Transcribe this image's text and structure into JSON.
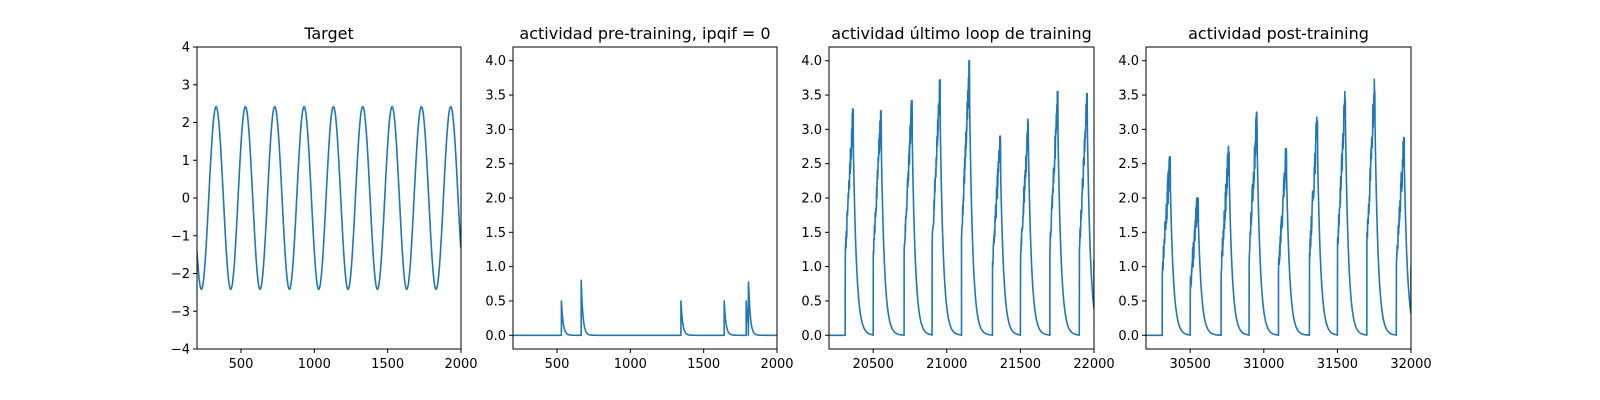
{
  "colors": {
    "line": "#1f77b4",
    "axes": "#000000",
    "background": "#ffffff"
  },
  "chart_data": [
    {
      "type": "line",
      "title": "Target",
      "xlabel": "",
      "ylabel": "",
      "xlim": [
        200,
        2000
      ],
      "ylim": [
        -4,
        4
      ],
      "xticks": [
        500,
        1000,
        1500,
        2000
      ],
      "xticklabels": [
        "500",
        "1000",
        "1500",
        "2000"
      ],
      "yticks": [
        -4,
        -3,
        -2,
        -1,
        0,
        1,
        2,
        3,
        4
      ],
      "yticklabels": [
        "−4",
        "−3",
        "−2",
        "−1",
        "0",
        "1",
        "2",
        "3",
        "4"
      ],
      "grid": false,
      "series": [
        {
          "kind": "sinusoid",
          "x_range": [
            200,
            2000
          ],
          "amplitude": 2.42,
          "period": 200,
          "peak_x": 330,
          "end_value": -0.9
        }
      ]
    },
    {
      "type": "line",
      "title": "actividad pre-training, ipqif = 0",
      "xlabel": "",
      "ylabel": "",
      "xlim": [
        200,
        2000
      ],
      "ylim": [
        -0.2,
        4.2
      ],
      "xticks": [
        500,
        1000,
        1500,
        2000
      ],
      "xticklabels": [
        "500",
        "1000",
        "1500",
        "2000"
      ],
      "yticks": [
        0.0,
        0.5,
        1.0,
        1.5,
        2.0,
        2.5,
        3.0,
        3.5,
        4.0
      ],
      "yticklabels": [
        "0.0",
        "0.5",
        "1.0",
        "1.5",
        "2.0",
        "2.5",
        "3.0",
        "3.5",
        "4.0"
      ],
      "grid": false,
      "series": [
        {
          "kind": "spikes",
          "x_range": [
            200,
            2000
          ],
          "baseline": 0.0,
          "decay": 12,
          "events": [
            {
              "x": 530,
              "peak": 0.5
            },
            {
              "x": 665,
              "peak": 0.8
            },
            {
              "x": 1345,
              "peak": 0.5
            },
            {
              "x": 1640,
              "peak": 0.5
            },
            {
              "x": 1790,
              "peak": 0.5
            },
            {
              "x": 1805,
              "peak": 0.7
            }
          ]
        }
      ]
    },
    {
      "type": "line",
      "title": "actividad último loop de training",
      "xlabel": "",
      "ylabel": "",
      "xlim": [
        20200,
        22000
      ],
      "ylim": [
        -0.2,
        4.2
      ],
      "xticks": [
        20500,
        21000,
        21500,
        22000
      ],
      "xticklabels": [
        "20500",
        "21000",
        "21500",
        "22000"
      ],
      "yticks": [
        0.0,
        0.5,
        1.0,
        1.5,
        2.0,
        2.5,
        3.0,
        3.5,
        4.0
      ],
      "yticklabels": [
        "0.0",
        "0.5",
        "1.0",
        "1.5",
        "2.0",
        "2.5",
        "3.0",
        "3.5",
        "4.0"
      ],
      "grid": false,
      "series": [
        {
          "kind": "bursts",
          "x_range": [
            20200,
            22000
          ],
          "baseline": 0.0,
          "rise": 55,
          "decay": 22,
          "noise": 0.25,
          "seed": 7,
          "bursts": [
            {
              "start": 20310,
              "peak": 3.3
            },
            {
              "start": 20500,
              "peak": 3.27
            },
            {
              "start": 20710,
              "peak": 3.42
            },
            {
              "start": 20900,
              "peak": 3.72
            },
            {
              "start": 21100,
              "peak": 4.0
            },
            {
              "start": 21310,
              "peak": 2.9
            },
            {
              "start": 21500,
              "peak": 3.15
            },
            {
              "start": 21700,
              "peak": 3.55
            },
            {
              "start": 21900,
              "peak": 3.52
            }
          ],
          "end_value": 1.1
        }
      ]
    },
    {
      "type": "line",
      "title": "actividad post-training",
      "xlabel": "",
      "ylabel": "",
      "xlim": [
        30200,
        32000
      ],
      "ylim": [
        -0.2,
        4.2
      ],
      "xticks": [
        30500,
        31000,
        31500,
        32000
      ],
      "xticklabels": [
        "30500",
        "31000",
        "31500",
        "32000"
      ],
      "yticks": [
        0.0,
        0.5,
        1.0,
        1.5,
        2.0,
        2.5,
        3.0,
        3.5,
        4.0
      ],
      "yticklabels": [
        "0.0",
        "0.5",
        "1.0",
        "1.5",
        "2.0",
        "2.5",
        "3.0",
        "3.5",
        "4.0"
      ],
      "grid": false,
      "series": [
        {
          "kind": "bursts",
          "x_range": [
            30200,
            32000
          ],
          "baseline": 0.0,
          "rise": 55,
          "decay": 22,
          "noise": 0.3,
          "seed": 13,
          "bursts": [
            {
              "start": 30310,
              "peak": 2.6
            },
            {
              "start": 30500,
              "peak": 2.0
            },
            {
              "start": 30710,
              "peak": 2.75
            },
            {
              "start": 30900,
              "peak": 3.25
            },
            {
              "start": 31100,
              "peak": 2.72
            },
            {
              "start": 31310,
              "peak": 3.18
            },
            {
              "start": 31500,
              "peak": 3.55
            },
            {
              "start": 31700,
              "peak": 3.73
            },
            {
              "start": 31900,
              "peak": 2.88
            }
          ],
          "end_value": 1.0
        }
      ]
    }
  ]
}
